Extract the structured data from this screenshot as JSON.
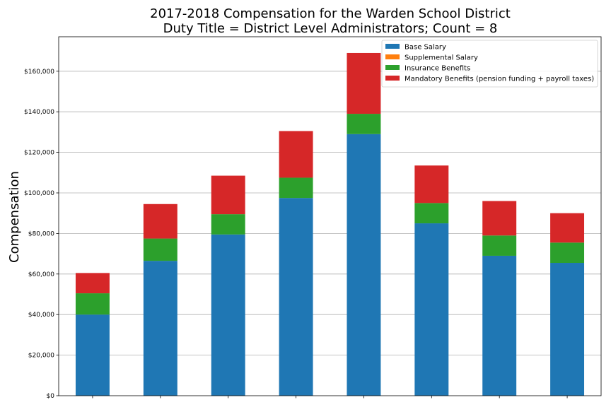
{
  "chart_data": {
    "type": "bar",
    "stacked": true,
    "title": "2017-2018 Compensation for the Warden School District",
    "subtitle": "Duty Title = District Level Administrators; Count = 8",
    "xlabel": "",
    "ylabel": "Compensation",
    "ylim": [
      0,
      177000
    ],
    "yticks": [
      0,
      20000,
      40000,
      60000,
      80000,
      100000,
      120000,
      140000,
      160000
    ],
    "ytick_labels": [
      "$0",
      "$20,000",
      "$40,000",
      "$60,000",
      "$80,000",
      "$100,000",
      "$120,000",
      "$140,000",
      "$160,000"
    ],
    "categories": [
      "",
      "",
      "",
      "",
      "",
      "",
      "",
      ""
    ],
    "grid": "horizontal",
    "legend_position": "top-right",
    "series": [
      {
        "name": "Base Salary",
        "color": "#1f77b4",
        "values": [
          40000,
          66500,
          79500,
          97500,
          129000,
          85000,
          69000,
          65500
        ]
      },
      {
        "name": "Supplemental Salary",
        "color": "#ff7f0e",
        "values": [
          0,
          0,
          0,
          0,
          0,
          0,
          0,
          0
        ]
      },
      {
        "name": "Insurance Benefits",
        "color": "#2ca02c",
        "values": [
          10500,
          11000,
          10000,
          10000,
          10000,
          10000,
          10000,
          10000
        ]
      },
      {
        "name": "Mandatory Benefits (pension funding + payroll taxes)",
        "color": "#d62728",
        "values": [
          10000,
          17000,
          19000,
          23000,
          30000,
          18500,
          17000,
          14500
        ]
      }
    ]
  }
}
